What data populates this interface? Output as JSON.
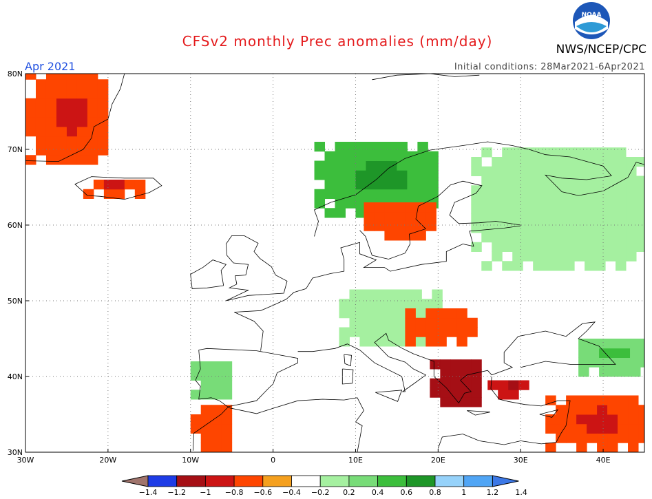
{
  "header": {
    "title": "CFSv2 monthly Prec anomalies (mm/day)",
    "org": "NWS/NCEP/CPC",
    "month": "Apr 2021",
    "initial_conditions": "Initial conditions: 28Mar2021-6Apr2021",
    "logo_text": "NOAA"
  },
  "axes": {
    "lat_labels": [
      "80N",
      "70N",
      "60N",
      "50N",
      "40N",
      "30N"
    ],
    "lon_labels": [
      "30W",
      "20W",
      "10W",
      "0",
      "10E",
      "20E",
      "30E",
      "40E"
    ]
  },
  "colorbar": {
    "labels": [
      "-1.4",
      "-1.2",
      "-1",
      "-0.8",
      "-0.6",
      "-0.4",
      "-0.2",
      "0.2",
      "0.4",
      "0.6",
      "0.8",
      "1",
      "1.2",
      "1.4"
    ],
    "colors": [
      "#a0746c",
      "#1e3ce6",
      "#a50f15",
      "#cc1414",
      "#fe4500",
      "#f5a01e",
      "#ffffff",
      "#a5f0a0",
      "#78dc78",
      "#3cbe3c",
      "#1e9628",
      "#96d2fa",
      "#50a5f5",
      "#3c78e6"
    ]
  },
  "map_data": {
    "projection": "equirectangular",
    "lon_range": [
      -30,
      45
    ],
    "lat_range": [
      30,
      80
    ],
    "anomaly_regions": [
      {
        "area": "Iceland south",
        "lon": [
          -23,
          -16
        ],
        "lat": [
          63.5,
          65.5
        ],
        "value": -0.5
      },
      {
        "area": "Greenland east coast",
        "lon": [
          -30,
          -20
        ],
        "lat": [
          68,
          80
        ],
        "value": -0.5
      },
      {
        "area": "Scandinavian mountains",
        "lon": [
          5,
          20
        ],
        "lat": [
          61,
          70
        ],
        "value": 0.6
      },
      {
        "area": "Sweden central",
        "lon": [
          11,
          19
        ],
        "lat": [
          58,
          63
        ],
        "value": -0.4
      },
      {
        "area": "Russia north",
        "lon": [
          24,
          45
        ],
        "lat": [
          54,
          70
        ],
        "value": 0.3
      },
      {
        "area": "Central Europe",
        "lon": [
          8,
          20
        ],
        "lat": [
          44,
          51
        ],
        "value": 0.3
      },
      {
        "area": "Balkans",
        "lon": [
          16,
          24
        ],
        "lat": [
          44,
          48
        ],
        "value": -0.4
      },
      {
        "area": "Greece",
        "lon": [
          19,
          25
        ],
        "lat": [
          36,
          42
        ],
        "value": -0.8
      },
      {
        "area": "Turkey west",
        "lon": [
          26,
          30
        ],
        "lat": [
          37,
          39
        ],
        "value": -0.6
      },
      {
        "area": "Middle East",
        "lon": [
          33,
          45
        ],
        "lat": [
          30,
          37
        ],
        "value": -0.5
      },
      {
        "area": "Caucasus",
        "lon": [
          37,
          45
        ],
        "lat": [
          40,
          45
        ],
        "value": 0.5
      },
      {
        "area": "Iberia west",
        "lon": [
          -10,
          -5
        ],
        "lat": [
          37,
          42
        ],
        "value": 0.4
      },
      {
        "area": "Morocco",
        "lon": [
          -10,
          -5
        ],
        "lat": [
          30,
          36
        ],
        "value": -0.4
      }
    ]
  }
}
